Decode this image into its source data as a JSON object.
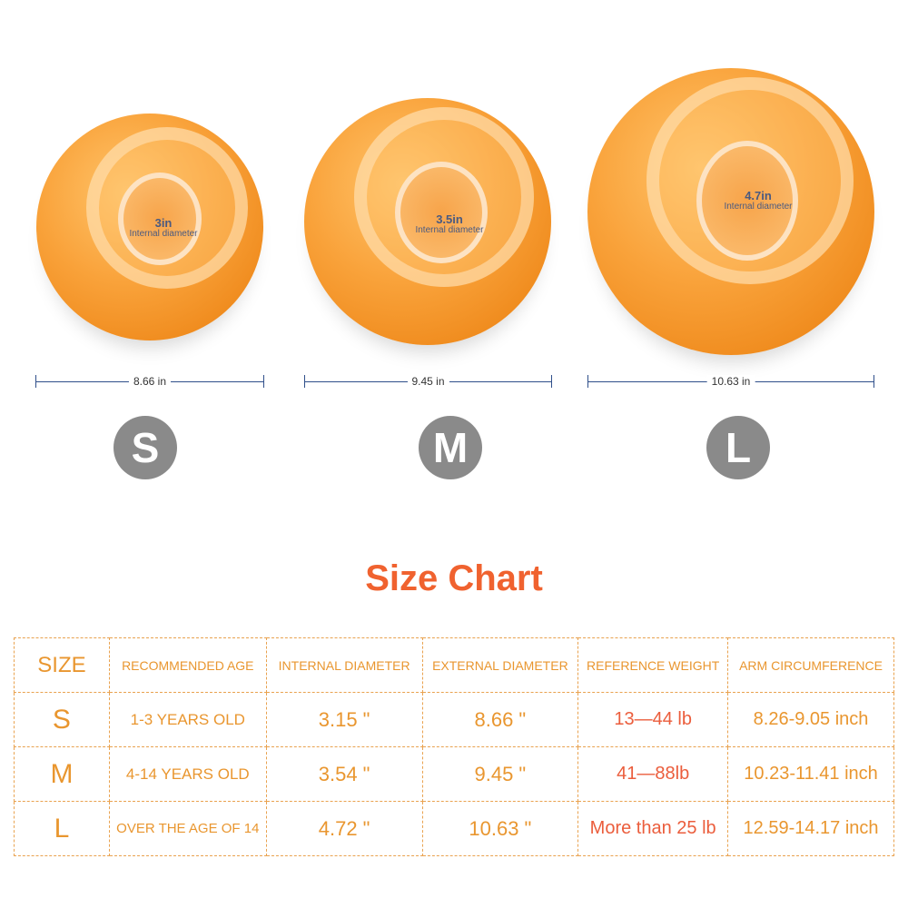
{
  "products": [
    {
      "size": "S",
      "internal_label": "3in",
      "internal_caption": "Internal diameter",
      "external": "8.66 in"
    },
    {
      "size": "M",
      "internal_label": "3.5in",
      "internal_caption": "Internal diameter",
      "external": "9.45 in"
    },
    {
      "size": "L",
      "internal_label": "4.7in",
      "internal_caption": "Internal diameter",
      "external": "10.63 in"
    }
  ],
  "title": "Size Chart",
  "colors": {
    "title": "#f0622f",
    "table": "#e9962f",
    "weight": "#eb5d3c",
    "ball": "#f9a23a",
    "badge": "#8a8a8a"
  },
  "table": {
    "headers": [
      "SIZE",
      "RECOMMENDED AGE",
      "INTERNAL DIAMETER",
      "EXTERNAL DIAMETER",
      "REFERENCE WEIGHT",
      "ARM CIRCUMFERENCE"
    ],
    "rows": [
      [
        "S",
        "1-3 YEARS OLD",
        "3.15 \"",
        "8.66 \"",
        "13—44 lb",
        "8.26-9.05 inch"
      ],
      [
        "M",
        "4-14 YEARS OLD",
        "3.54 \"",
        "9.45 \"",
        "41—88lb",
        "10.23-11.41 inch"
      ],
      [
        "L",
        "OVER THE AGE OF 14",
        "4.72 \"",
        "10.63 \"",
        "More than 25 lb",
        "12.59-14.17 inch"
      ]
    ]
  }
}
